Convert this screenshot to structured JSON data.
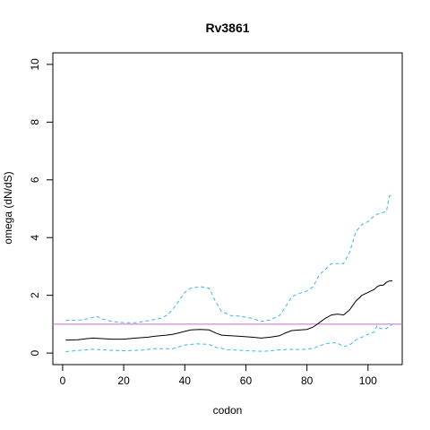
{
  "chart_data": {
    "type": "line",
    "title": "Rv3861",
    "xlabel": "codon",
    "ylabel": "omega (dN/dS)",
    "xlim": [
      -3.2,
      111.2
    ],
    "ylim": [
      -0.4,
      10.4
    ],
    "x_ticks": [
      0,
      20,
      40,
      60,
      80,
      100
    ],
    "y_ticks": [
      0,
      2,
      4,
      6,
      8,
      10
    ],
    "grid": false,
    "legend": "none",
    "reference_line": {
      "y": 1,
      "color": "#c86ec8"
    },
    "series": [
      {
        "style": "solid",
        "color": "#000000",
        "points": [
          [
            1,
            0.45
          ],
          [
            5,
            0.46
          ],
          [
            8,
            0.5
          ],
          [
            10,
            0.52
          ],
          [
            13,
            0.5
          ],
          [
            16,
            0.48
          ],
          [
            20,
            0.48
          ],
          [
            24,
            0.52
          ],
          [
            28,
            0.55
          ],
          [
            30,
            0.58
          ],
          [
            34,
            0.62
          ],
          [
            36,
            0.65
          ],
          [
            38,
            0.7
          ],
          [
            40,
            0.75
          ],
          [
            42,
            0.8
          ],
          [
            45,
            0.82
          ],
          [
            48,
            0.8
          ],
          [
            50,
            0.7
          ],
          [
            52,
            0.62
          ],
          [
            55,
            0.6
          ],
          [
            58,
            0.58
          ],
          [
            62,
            0.55
          ],
          [
            65,
            0.52
          ],
          [
            68,
            0.55
          ],
          [
            71,
            0.6
          ],
          [
            73,
            0.7
          ],
          [
            75,
            0.78
          ],
          [
            78,
            0.8
          ],
          [
            80,
            0.82
          ],
          [
            82,
            0.9
          ],
          [
            84,
            1.05
          ],
          [
            86,
            1.2
          ],
          [
            88,
            1.32
          ],
          [
            90,
            1.35
          ],
          [
            92,
            1.32
          ],
          [
            94,
            1.5
          ],
          [
            96,
            1.8
          ],
          [
            98,
            2.0
          ],
          [
            100,
            2.1
          ],
          [
            102,
            2.2
          ],
          [
            103,
            2.3
          ],
          [
            104,
            2.35
          ],
          [
            105,
            2.35
          ],
          [
            106,
            2.45
          ],
          [
            107,
            2.5
          ],
          [
            108,
            2.5
          ]
        ]
      },
      {
        "style": "dashed",
        "color": "#3cb4f0",
        "points": [
          [
            1,
            1.13
          ],
          [
            6,
            1.15
          ],
          [
            9,
            1.2
          ],
          [
            11,
            1.28
          ],
          [
            13,
            1.18
          ],
          [
            16,
            1.1
          ],
          [
            20,
            1.05
          ],
          [
            24,
            1.05
          ],
          [
            28,
            1.12
          ],
          [
            32,
            1.2
          ],
          [
            34,
            1.3
          ],
          [
            36,
            1.5
          ],
          [
            38,
            1.8
          ],
          [
            40,
            2.1
          ],
          [
            42,
            2.25
          ],
          [
            45,
            2.3
          ],
          [
            48,
            2.25
          ],
          [
            50,
            1.8
          ],
          [
            52,
            1.45
          ],
          [
            55,
            1.3
          ],
          [
            58,
            1.28
          ],
          [
            62,
            1.2
          ],
          [
            65,
            1.1
          ],
          [
            68,
            1.15
          ],
          [
            71,
            1.3
          ],
          [
            73,
            1.6
          ],
          [
            75,
            1.95
          ],
          [
            77,
            2.05
          ],
          [
            80,
            2.15
          ],
          [
            82,
            2.3
          ],
          [
            84,
            2.7
          ],
          [
            86,
            2.9
          ],
          [
            88,
            3.1
          ],
          [
            92,
            3.1
          ],
          [
            94,
            3.5
          ],
          [
            96,
            4.2
          ],
          [
            98,
            4.45
          ],
          [
            100,
            4.55
          ],
          [
            102,
            4.75
          ],
          [
            104,
            4.85
          ],
          [
            106,
            4.9
          ],
          [
            107,
            5.45
          ],
          [
            108,
            5.45
          ]
        ]
      },
      {
        "style": "dashed",
        "color": "#3cb4f0",
        "points": [
          [
            1,
            0.05
          ],
          [
            6,
            0.1
          ],
          [
            10,
            0.13
          ],
          [
            15,
            0.1
          ],
          [
            20,
            0.08
          ],
          [
            26,
            0.1
          ],
          [
            30,
            0.15
          ],
          [
            36,
            0.15
          ],
          [
            40,
            0.28
          ],
          [
            44,
            0.32
          ],
          [
            48,
            0.3
          ],
          [
            50,
            0.2
          ],
          [
            54,
            0.12
          ],
          [
            60,
            0.08
          ],
          [
            66,
            0.06
          ],
          [
            70,
            0.1
          ],
          [
            74,
            0.13
          ],
          [
            78,
            0.12
          ],
          [
            82,
            0.16
          ],
          [
            84,
            0.25
          ],
          [
            86,
            0.32
          ],
          [
            88,
            0.35
          ],
          [
            90,
            0.35
          ],
          [
            92,
            0.22
          ],
          [
            94,
            0.28
          ],
          [
            96,
            0.45
          ],
          [
            98,
            0.55
          ],
          [
            100,
            0.65
          ],
          [
            102,
            0.72
          ],
          [
            103,
            0.95
          ],
          [
            104,
            0.85
          ],
          [
            106,
            0.85
          ],
          [
            108,
            1.0
          ]
        ]
      }
    ]
  }
}
